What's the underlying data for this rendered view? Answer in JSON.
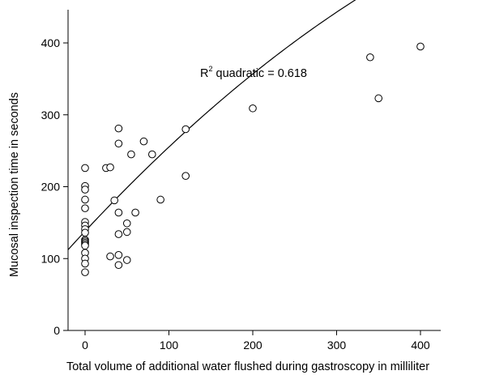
{
  "chart_data": {
    "type": "scatter",
    "xlabel": "Total volume of additional water flushed during gastroscopy in milliliter",
    "ylabel": "Mucosal inspection time in seconds",
    "xlim": [
      -25,
      420
    ],
    "ylim": [
      0,
      440
    ],
    "xticks": [
      "0",
      "100",
      "200",
      "300",
      "400"
    ],
    "yticks": [
      "0",
      "100",
      "200",
      "300",
      "400"
    ],
    "xtick_values": [
      0,
      100,
      200,
      300,
      400
    ],
    "ytick_values": [
      0,
      100,
      200,
      300,
      400
    ],
    "annotation": {
      "base": "R",
      "superscript": "2",
      "rest": " quadratic = 0.618"
    },
    "fit_curve": {
      "type": "quadratic",
      "coefficients": [
        138,
        1.25,
        -0.00078
      ]
    },
    "points": [
      {
        "x": 0,
        "y": 226
      },
      {
        "x": 0,
        "y": 201
      },
      {
        "x": 0,
        "y": 196
      },
      {
        "x": 0,
        "y": 182
      },
      {
        "x": 0,
        "y": 170
      },
      {
        "x": 0,
        "y": 151
      },
      {
        "x": 0,
        "y": 146
      },
      {
        "x": 0,
        "y": 141
      },
      {
        "x": 0,
        "y": 136
      },
      {
        "x": 0,
        "y": 126
      },
      {
        "x": 0,
        "y": 124
      },
      {
        "x": 0,
        "y": 122
      },
      {
        "x": 0,
        "y": 120
      },
      {
        "x": 0,
        "y": 118
      },
      {
        "x": 0,
        "y": 108
      },
      {
        "x": 0,
        "y": 100
      },
      {
        "x": 0,
        "y": 93
      },
      {
        "x": 0,
        "y": 81
      },
      {
        "x": 25,
        "y": 226
      },
      {
        "x": 30,
        "y": 227
      },
      {
        "x": 30,
        "y": 103
      },
      {
        "x": 35,
        "y": 181
      },
      {
        "x": 40,
        "y": 281
      },
      {
        "x": 40,
        "y": 260
      },
      {
        "x": 40,
        "y": 164
      },
      {
        "x": 40,
        "y": 134
      },
      {
        "x": 40,
        "y": 105
      },
      {
        "x": 40,
        "y": 91
      },
      {
        "x": 50,
        "y": 149
      },
      {
        "x": 50,
        "y": 137
      },
      {
        "x": 50,
        "y": 98
      },
      {
        "x": 55,
        "y": 245
      },
      {
        "x": 60,
        "y": 164
      },
      {
        "x": 70,
        "y": 263
      },
      {
        "x": 80,
        "y": 245
      },
      {
        "x": 90,
        "y": 182
      },
      {
        "x": 120,
        "y": 280
      },
      {
        "x": 120,
        "y": 215
      },
      {
        "x": 200,
        "y": 309
      },
      {
        "x": 340,
        "y": 380
      },
      {
        "x": 350,
        "y": 323
      },
      {
        "x": 400,
        "y": 395
      }
    ]
  }
}
